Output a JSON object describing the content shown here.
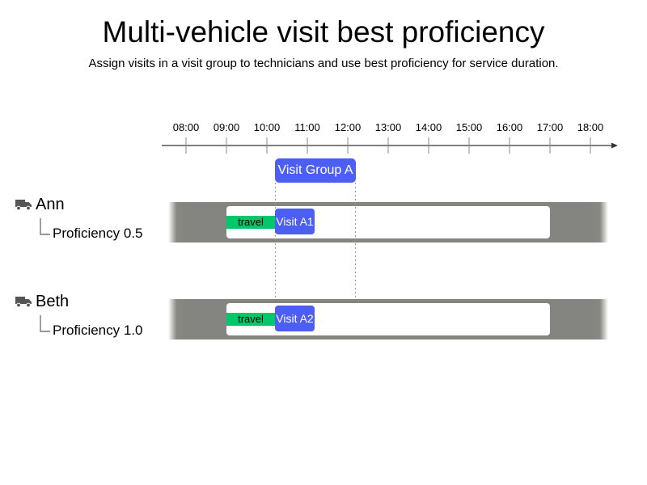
{
  "title": "Multi-vehicle visit best proficiency",
  "subtitle": "Assign visits in a visit group to technicians and use best proficiency for service duration.",
  "timeline": {
    "ticks": [
      "08:00",
      "09:00",
      "10:00",
      "11:00",
      "12:00",
      "13:00",
      "14:00",
      "15:00",
      "16:00",
      "17:00",
      "18:00"
    ],
    "start_hour": 8,
    "end_hour": 18
  },
  "visit_group": {
    "label": "Visit Group A",
    "start": "10:15",
    "end": "12:15",
    "color": "#4d5ef4"
  },
  "vehicles": [
    {
      "name": "Ann",
      "icon": "truck-icon",
      "proficiency_label": "Proficiency 0.5",
      "shift": {
        "start": "09:00",
        "end": "17:00"
      },
      "travel": {
        "label": "travel",
        "start": "09:00",
        "end": "10:15"
      },
      "visit": {
        "label": "Visit A1",
        "start": "10:15",
        "end": "11:15"
      }
    },
    {
      "name": "Beth",
      "icon": "truck-icon",
      "proficiency_label": "Proficiency 1.0",
      "shift": {
        "start": "09:00",
        "end": "17:00"
      },
      "travel": {
        "label": "travel",
        "start": "09:00",
        "end": "10:15"
      },
      "visit": {
        "label": "Visit A2",
        "start": "10:15",
        "end": "11:15"
      }
    }
  ],
  "colors": {
    "travel": "#00c86a",
    "visit": "#4d5ef4",
    "lane": "#848480",
    "axis": "#333333"
  }
}
